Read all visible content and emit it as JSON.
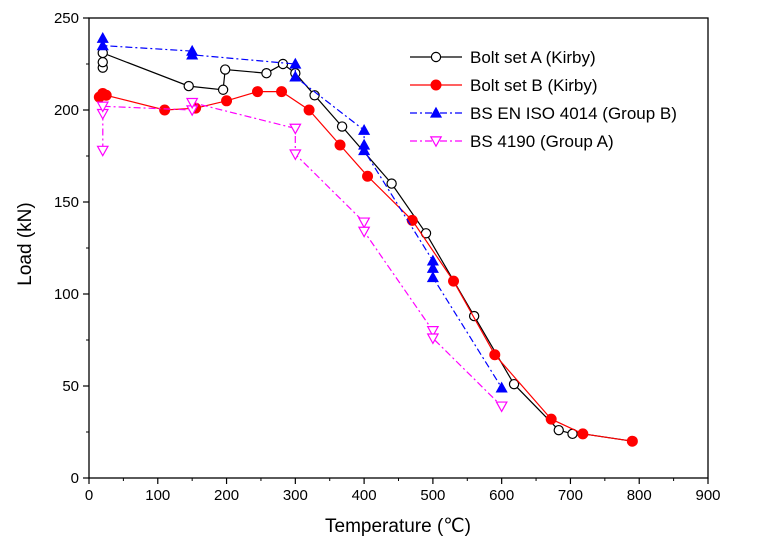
{
  "chart_data": {
    "type": "line",
    "title": "",
    "xlabel": "Temperature (℃)",
    "ylabel": "Load (kN)",
    "xlim": [
      0,
      900
    ],
    "ylim": [
      0,
      250
    ],
    "xticks": [
      0,
      100,
      200,
      300,
      400,
      500,
      600,
      700,
      800,
      900
    ],
    "yticks": [
      0,
      50,
      100,
      150,
      200,
      250
    ],
    "grid": false,
    "legend_position": "top-right",
    "series": [
      {
        "name": "Bolt set A (Kirby)",
        "color": "#000000",
        "line_style": "solid",
        "marker": "open-circle",
        "x": [
          20,
          20,
          20,
          145,
          195,
          198,
          258,
          282,
          300,
          328,
          368,
          440,
          490,
          560,
          618,
          683,
          703,
          718,
          790
        ],
        "y": [
          223,
          226,
          231,
          213,
          211,
          222,
          220,
          225,
          220,
          208,
          191,
          160,
          133,
          88,
          51,
          26,
          24,
          24,
          20
        ]
      },
      {
        "name": "Bolt set B (Kirby)",
        "color": "#ff0000",
        "line_style": "solid",
        "marker": "filled-circle",
        "x": [
          15,
          20,
          25,
          110,
          155,
          200,
          245,
          280,
          320,
          365,
          405,
          470,
          530,
          590,
          672,
          718,
          790
        ],
        "y": [
          207,
          209,
          208,
          200,
          201,
          205,
          210,
          210,
          200,
          181,
          164,
          140,
          107,
          67,
          32,
          24,
          20
        ]
      },
      {
        "name": "BS EN ISO 4014 (Group B)",
        "color": "#0000ff",
        "line_style": "dash-dot",
        "marker": "filled-triangle-up",
        "x": [
          20,
          20,
          150,
          150,
          300,
          300,
          400,
          400,
          400,
          500,
          500,
          500,
          600
        ],
        "y": [
          239,
          235,
          232,
          230,
          225,
          218,
          189,
          181,
          178,
          118,
          114,
          109,
          49
        ]
      },
      {
        "name": "BS 4190 (Group A)",
        "color": "#ff00ff",
        "line_style": "dash-dot",
        "marker": "open-triangle-down",
        "x": [
          20,
          20,
          20,
          150,
          150,
          300,
          300,
          400,
          400,
          500,
          500,
          600
        ],
        "y": [
          178,
          198,
          202,
          200,
          204,
          190,
          176,
          139,
          134,
          80,
          76,
          39
        ]
      }
    ]
  }
}
